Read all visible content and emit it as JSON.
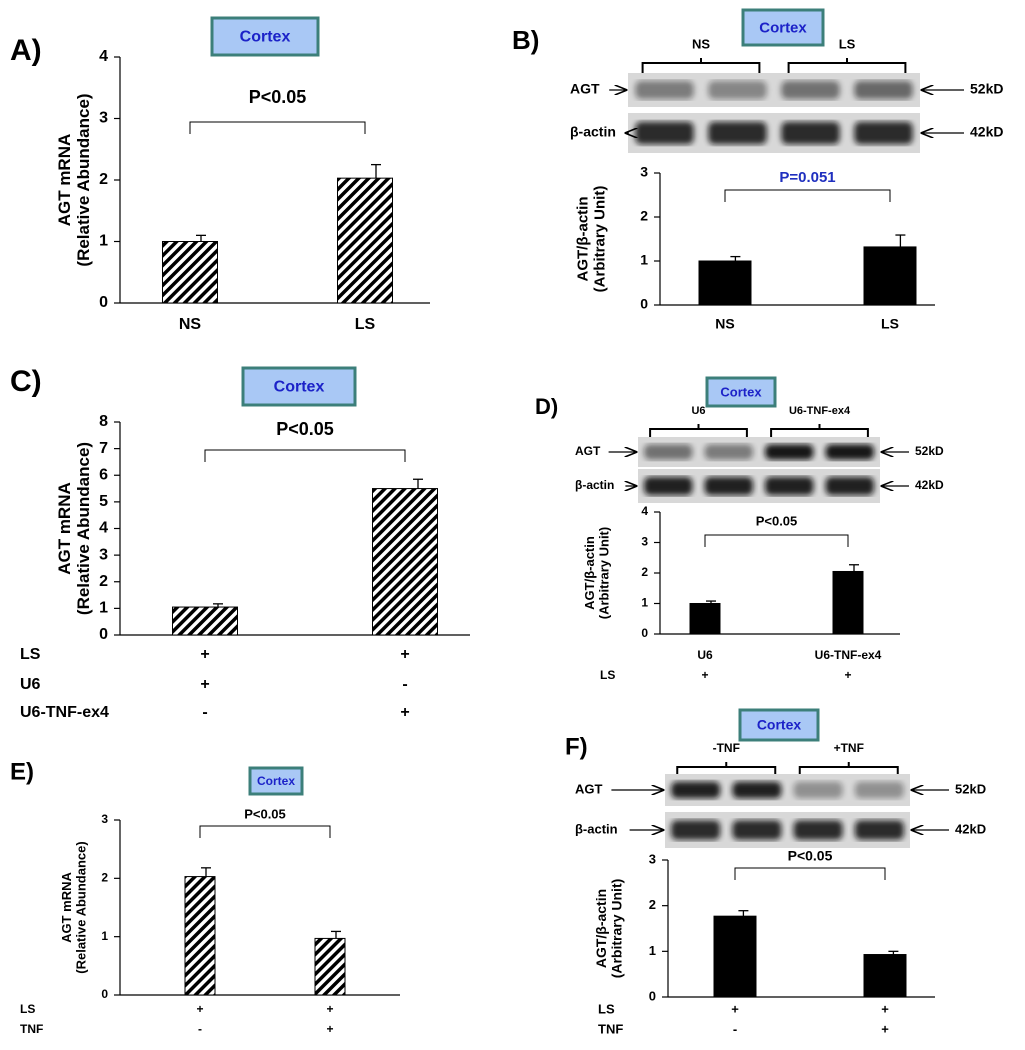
{
  "chart_data": [
    {
      "type": "bar",
      "panel": "A)",
      "box_label": "Cortex",
      "ylabel": [
        "AGT mRNA",
        "(Relative Abundance)"
      ],
      "categories": [
        "NS",
        "LS"
      ],
      "values": [
        1.0,
        2.03
      ],
      "errors": [
        0.1,
        0.22
      ],
      "color": "#000000",
      "hatched": true,
      "ylim": [
        0,
        4
      ],
      "yticks": [
        0,
        1,
        2,
        3,
        4
      ],
      "annotation": "P<0.05",
      "annotation_color": "#000000"
    },
    {
      "type": "bar",
      "panel": "B)",
      "box_label": "Cortex",
      "ylabel": [
        "AGT/β-actin",
        "(Arbitrary Unit)"
      ],
      "blot": {
        "groups": [
          "NS",
          "LS"
        ],
        "bands": [
          {
            "name": "AGT",
            "size": "52kD"
          },
          {
            "name": "β-actin",
            "size": "42kD"
          }
        ]
      },
      "categories": [
        "NS",
        "LS"
      ],
      "values": [
        1.0,
        1.32
      ],
      "errors": [
        0.1,
        0.27
      ],
      "color": "#000000",
      "hatched": false,
      "ylim": [
        0,
        3
      ],
      "yticks": [
        0,
        1,
        2,
        3
      ],
      "annotation": "P=0.051",
      "annotation_color": "#1f2fbf"
    },
    {
      "type": "bar",
      "panel": "C)",
      "box_label": "Cortex",
      "ylabel": [
        "AGT mRNA",
        "(Relative Abundance)"
      ],
      "values": [
        1.05,
        5.5
      ],
      "errors": [
        0.12,
        0.35
      ],
      "color": "#000000",
      "hatched": true,
      "rows": [
        {
          "name": "LS",
          "values": [
            "+",
            "+"
          ]
        },
        {
          "name": "U6",
          "values": [
            "+",
            "-"
          ]
        },
        {
          "name": "U6-TNF-ex4",
          "values": [
            "-",
            "+"
          ]
        }
      ],
      "ylim": [
        0,
        8
      ],
      "yticks": [
        0,
        1,
        2,
        3,
        4,
        5,
        6,
        7,
        8
      ],
      "annotation": "P<0.05",
      "annotation_color": "#000000"
    },
    {
      "type": "bar",
      "panel": "D)",
      "box_label": "Cortex",
      "ylabel": [
        "AGT/β-actin",
        "(Arbitrary Unit)"
      ],
      "blot": {
        "groups": [
          "U6",
          "U6-TNF-ex4"
        ],
        "bands": [
          {
            "name": "AGT",
            "size": "52kD"
          },
          {
            "name": "β-actin",
            "size": "42kD"
          }
        ]
      },
      "categories": [
        "U6",
        "U6-TNF-ex4"
      ],
      "values": [
        1.0,
        2.05
      ],
      "errors": [
        0.08,
        0.22
      ],
      "color": "#000000",
      "hatched": false,
      "rows": [
        {
          "name": "LS",
          "values": [
            "+",
            "+"
          ]
        }
      ],
      "ylim": [
        0,
        4
      ],
      "yticks": [
        0,
        1,
        2,
        3,
        4
      ],
      "annotation": "P<0.05",
      "annotation_color": "#000000"
    },
    {
      "type": "bar",
      "panel": "E)",
      "box_label": "Cortex",
      "ylabel": [
        "AGT mRNA",
        "(Relative Abundance)"
      ],
      "values": [
        2.03,
        0.97
      ],
      "errors": [
        0.15,
        0.12
      ],
      "color": "#000000",
      "hatched": true,
      "rows": [
        {
          "name": "LS",
          "values": [
            "+",
            "+"
          ]
        },
        {
          "name": "TNF",
          "values": [
            "-",
            "+"
          ]
        }
      ],
      "ylim": [
        0,
        3
      ],
      "yticks": [
        0,
        1,
        2,
        3
      ],
      "annotation": "P<0.05",
      "annotation_color": "#000000"
    },
    {
      "type": "bar",
      "panel": "F)",
      "box_label": "Cortex",
      "ylabel": [
        "AGT/β-actin",
        "(Arbitrary Unit)"
      ],
      "blot": {
        "groups": [
          "-TNF",
          "+TNF"
        ],
        "bands": [
          {
            "name": "AGT",
            "size": "52kD"
          },
          {
            "name": "β-actin",
            "size": "42kD"
          }
        ]
      },
      "values": [
        1.77,
        0.93
      ],
      "errors": [
        0.12,
        0.07
      ],
      "color": "#000000",
      "hatched": false,
      "rows": [
        {
          "name": "LS",
          "values": [
            "+",
            "+"
          ]
        },
        {
          "name": "TNF",
          "values": [
            "-",
            "+"
          ]
        }
      ],
      "ylim": [
        0,
        3
      ],
      "yticks": [
        0,
        1,
        2,
        3
      ],
      "annotation": "P<0.05",
      "annotation_color": "#000000"
    }
  ]
}
